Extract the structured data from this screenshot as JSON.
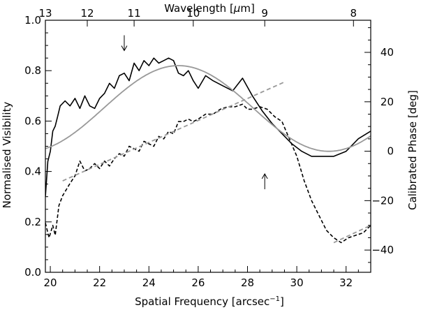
{
  "chart_data": {
    "type": "line",
    "xlabel_prefix": "Spatial Frequency [arcsec",
    "xlabel_superscript": "−1",
    "xlabel_suffix": "]",
    "ylabel_left": "Normalised Visibility",
    "ylabel_right": "Calibrated Phase [deg]",
    "top_axis_label_prefix": "Wavelength [",
    "top_axis_label_mu": "μ",
    "top_axis_label_suffix": "m]",
    "xlim": [
      19.8,
      33.0
    ],
    "ylim_left": [
      0.0,
      1.0
    ],
    "ylim_right": [
      -49,
      53
    ],
    "x_ticks": [
      "20",
      "22",
      "24",
      "26",
      "28",
      "30",
      "32"
    ],
    "y_left_ticks": [
      "0.0",
      "0.2",
      "0.4",
      "0.6",
      "0.8",
      "1.0"
    ],
    "y_right_ticks": [
      "−40",
      "−20",
      "0",
      "20",
      "40"
    ],
    "top_ticks": [
      {
        "label": "13",
        "freq": 19.8
      },
      {
        "label": "12",
        "freq": 21.5
      },
      {
        "label": "11",
        "freq": 23.4
      },
      {
        "label": "10",
        "freq": 25.8
      },
      {
        "label": "9",
        "freq": 28.7
      },
      {
        "label": "8",
        "freq": 32.3
      }
    ],
    "series": [
      {
        "style": "solid",
        "color": "#000000",
        "axis": "left",
        "x": [
          19.8,
          19.9,
          20.0,
          20.1,
          20.2,
          20.3,
          20.4,
          20.6,
          20.8,
          21.0,
          21.2,
          21.4,
          21.6,
          21.8,
          22.0,
          22.2,
          22.4,
          22.6,
          22.8,
          23.0,
          23.2,
          23.4,
          23.6,
          23.8,
          24.0,
          24.2,
          24.4,
          24.6,
          24.8,
          25.0,
          25.2,
          25.4,
          25.6,
          25.8,
          26.0,
          26.3,
          26.6,
          27.0,
          27.4,
          27.8,
          28.2,
          28.6,
          29.0,
          29.4,
          29.8,
          30.2,
          30.6,
          31.0,
          31.5,
          32.0,
          32.5,
          33.0
        ],
        "y": [
          0.3,
          0.44,
          0.48,
          0.56,
          0.58,
          0.62,
          0.66,
          0.68,
          0.66,
          0.69,
          0.65,
          0.7,
          0.66,
          0.65,
          0.69,
          0.71,
          0.75,
          0.73,
          0.78,
          0.79,
          0.76,
          0.83,
          0.8,
          0.84,
          0.82,
          0.85,
          0.83,
          0.84,
          0.85,
          0.84,
          0.79,
          0.78,
          0.8,
          0.76,
          0.73,
          0.78,
          0.76,
          0.74,
          0.72,
          0.77,
          0.7,
          0.64,
          0.59,
          0.55,
          0.51,
          0.48,
          0.46,
          0.46,
          0.46,
          0.48,
          0.53,
          0.56
        ]
      },
      {
        "style": "dashed",
        "color": "#000000",
        "axis": "right",
        "x": [
          19.8,
          19.95,
          20.1,
          20.2,
          20.35,
          20.5,
          20.8,
          21.0,
          21.2,
          21.4,
          21.6,
          21.8,
          22.0,
          22.2,
          22.4,
          22.6,
          22.8,
          23.0,
          23.2,
          23.4,
          23.6,
          23.8,
          24.0,
          24.2,
          24.4,
          24.6,
          24.8,
          25.0,
          25.2,
          25.4,
          25.6,
          25.8,
          26.0,
          26.3,
          26.6,
          26.9,
          27.2,
          27.5,
          27.8,
          28.0,
          28.2,
          28.5,
          28.8,
          29.1,
          29.4,
          29.7,
          30.0,
          30.3,
          30.6,
          30.9,
          31.2,
          31.5,
          31.8,
          32.1,
          32.4,
          32.7,
          33.0
        ],
        "y": [
          -29,
          -35,
          -30,
          -34,
          -22,
          -18,
          -13,
          -10,
          -4,
          -8,
          -7,
          -5,
          -7,
          -4,
          -6,
          -3,
          -1,
          -2,
          2,
          1,
          0,
          4,
          3,
          2,
          6,
          5,
          8,
          7,
          12,
          12,
          13,
          12,
          13,
          15,
          15,
          17,
          18,
          18,
          19,
          17,
          17,
          18,
          17,
          14,
          12,
          5,
          -2,
          -12,
          -20,
          -26,
          -32,
          -35,
          -37,
          -35,
          -34,
          -33,
          -30
        ]
      },
      {
        "style": "solid",
        "color": "#999999",
        "axis": "left",
        "function": "sine_fit",
        "x_range": [
          19.8,
          33.0
        ]
      },
      {
        "style": "dashed",
        "color": "#999999",
        "axis": "right",
        "segments": [
          {
            "x": [
              20.5,
              29.5
            ],
            "y": [
              -12,
              28
            ]
          },
          {
            "x": [
              31.5,
              33.0
            ],
            "y": [
              -37,
              -30
            ]
          }
        ]
      }
    ],
    "annotations": [
      {
        "symbol": "↓",
        "x": 23.0,
        "y_left": 0.91
      },
      {
        "symbol": "↑",
        "x": 28.7,
        "y_left": 0.36
      }
    ]
  }
}
